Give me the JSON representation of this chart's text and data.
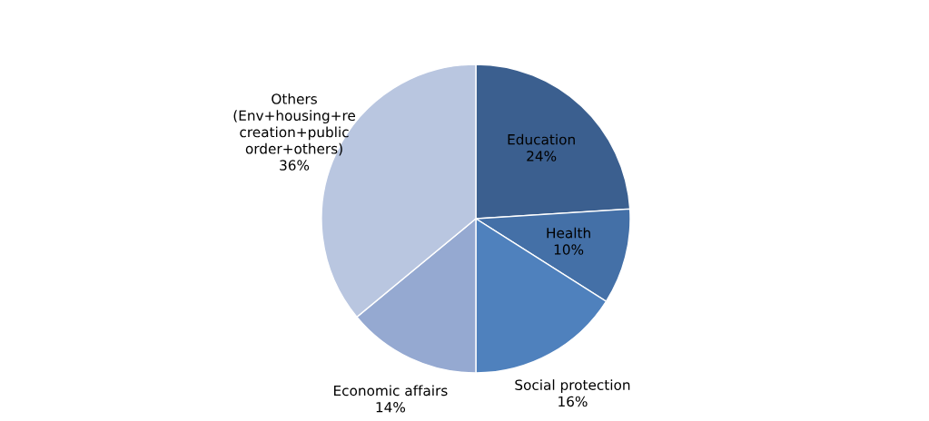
{
  "chart_data": {
    "type": "pie",
    "categories": [
      "Education",
      "Health",
      "Social protection",
      "Economic affairs",
      "Others\n(Env+housing+re\ncreation+public\norder+others)"
    ],
    "values": [
      24,
      10,
      16,
      14,
      36
    ],
    "colors": [
      "#3b5f8f",
      "#4470a7",
      "#4f81bd",
      "#95a9d1",
      "#b9c6e0"
    ],
    "value_labels": [
      "24%",
      "10%",
      "16%",
      "14%",
      "36%"
    ],
    "legend": false
  }
}
